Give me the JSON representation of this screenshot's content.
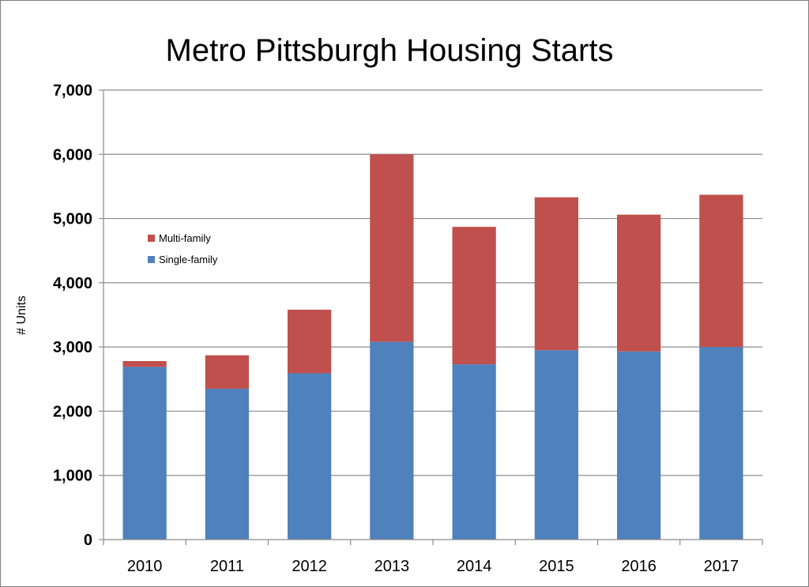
{
  "chart_data": {
    "type": "bar",
    "stacked": true,
    "title": "Metro Pittsburgh Housing Starts",
    "xlabel": "",
    "ylabel": "# Units",
    "categories": [
      "2010",
      "2011",
      "2012",
      "2013",
      "2014",
      "2015",
      "2016",
      "2017"
    ],
    "series": [
      {
        "name": "Single-family",
        "color": "#4f81bd",
        "values": [
          2690,
          2350,
          2590,
          3080,
          2730,
          2950,
          2930,
          3000
        ]
      },
      {
        "name": "Multi-family",
        "color": "#c0504d",
        "values": [
          90,
          520,
          990,
          2920,
          2140,
          2380,
          2130,
          2370
        ]
      }
    ],
    "ylim": [
      0,
      7000
    ],
    "yticks": [
      0,
      1000,
      2000,
      3000,
      4000,
      5000,
      6000,
      7000
    ],
    "ytick_labels": [
      "0",
      "1,000",
      "2,000",
      "3,000",
      "4,000",
      "5,000",
      "6,000",
      "7,000"
    ],
    "grid": true,
    "legend": {
      "placement": "upper-left inside plot",
      "entries": [
        "Multi-family",
        "Single-family"
      ]
    }
  }
}
